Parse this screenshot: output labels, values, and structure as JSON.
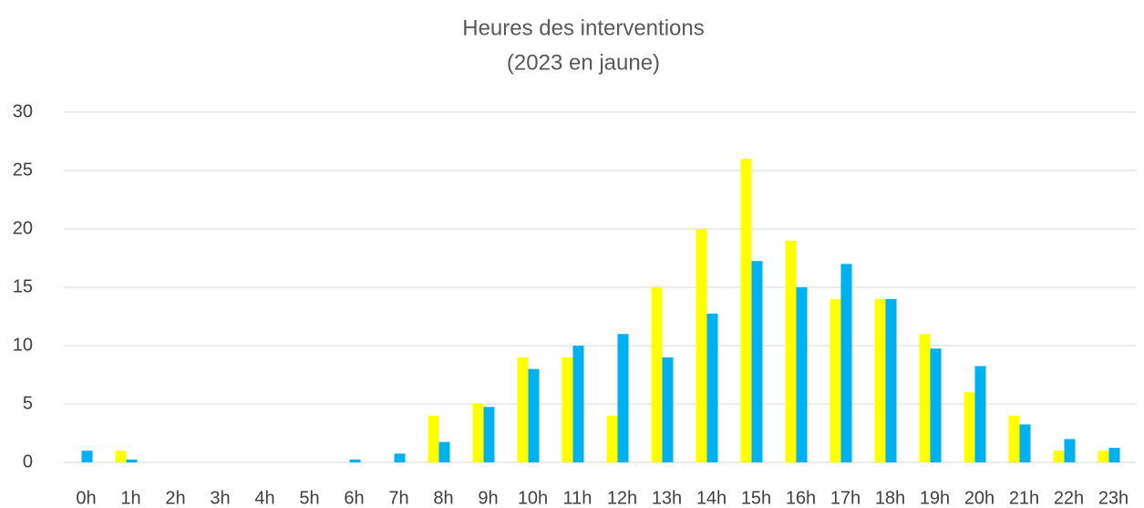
{
  "chart_data": {
    "type": "bar",
    "title": "Heures des interventions",
    "subtitle": "(2023 en jaune)",
    "categories": [
      "0h",
      "1h",
      "2h",
      "3h",
      "4h",
      "5h",
      "6h",
      "7h",
      "8h",
      "9h",
      "10h",
      "11h",
      "12h",
      "13h",
      "14h",
      "15h",
      "16h",
      "17h",
      "18h",
      "19h",
      "20h",
      "21h",
      "22h",
      "23h"
    ],
    "series": [
      {
        "color": "#ffff00",
        "values": [
          0,
          1,
          0,
          0,
          0,
          0,
          0,
          0,
          4,
          5,
          9,
          9,
          4,
          15,
          20,
          26,
          19,
          14,
          14,
          11,
          6,
          4,
          1,
          1
        ]
      },
      {
        "color": "#00b0f0",
        "values": [
          1,
          0.25,
          0,
          0,
          0,
          0,
          0.25,
          0.75,
          1.75,
          4.75,
          8,
          10,
          11,
          9,
          12.75,
          17.25,
          15,
          17,
          14,
          9.75,
          8.25,
          3.25,
          2,
          1.25
        ]
      }
    ],
    "ylim": [
      0,
      30
    ],
    "yticks": [
      0,
      5,
      10,
      15,
      20,
      25,
      30
    ],
    "grid": true
  }
}
